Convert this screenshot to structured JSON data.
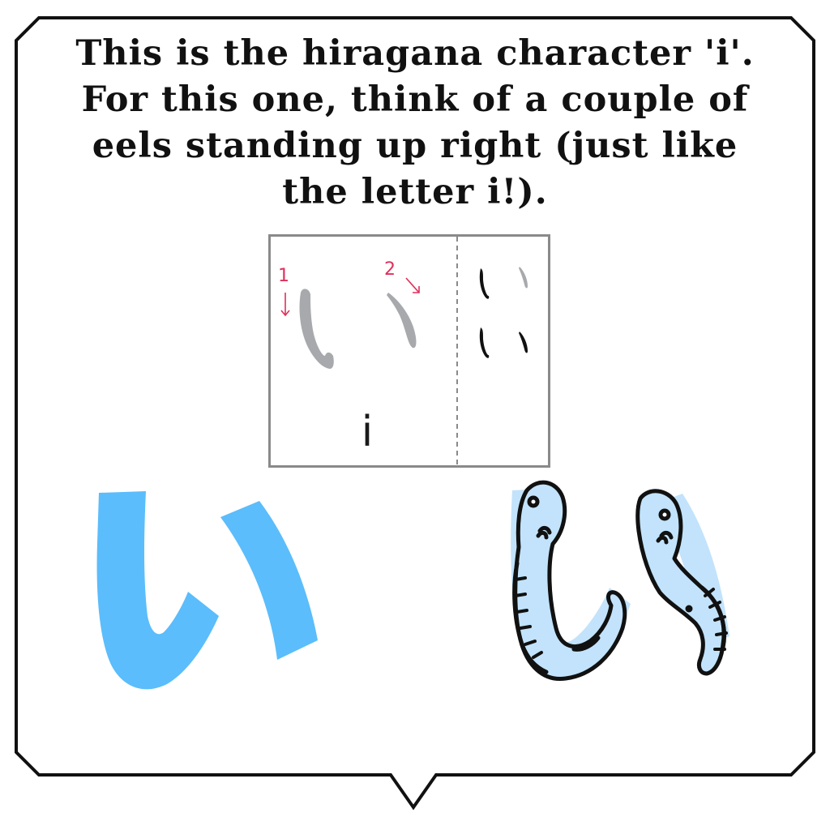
{
  "caption": {
    "line1": "This is the hiragana character 'i'.",
    "line2": "For this one, think of a couple of",
    "line3": "eels standing up right (just like",
    "line4": "the letter i!)."
  },
  "stroke_card": {
    "romaji": "i",
    "stroke_1_number": "1",
    "stroke_2_number": "2"
  },
  "colors": {
    "accent_blue": "#5bbdfb",
    "eel_fill": "#c2e3fb",
    "stroke_number": "#e0305a",
    "stroke_gray": "#a7a9ac",
    "outline": "#111111"
  }
}
